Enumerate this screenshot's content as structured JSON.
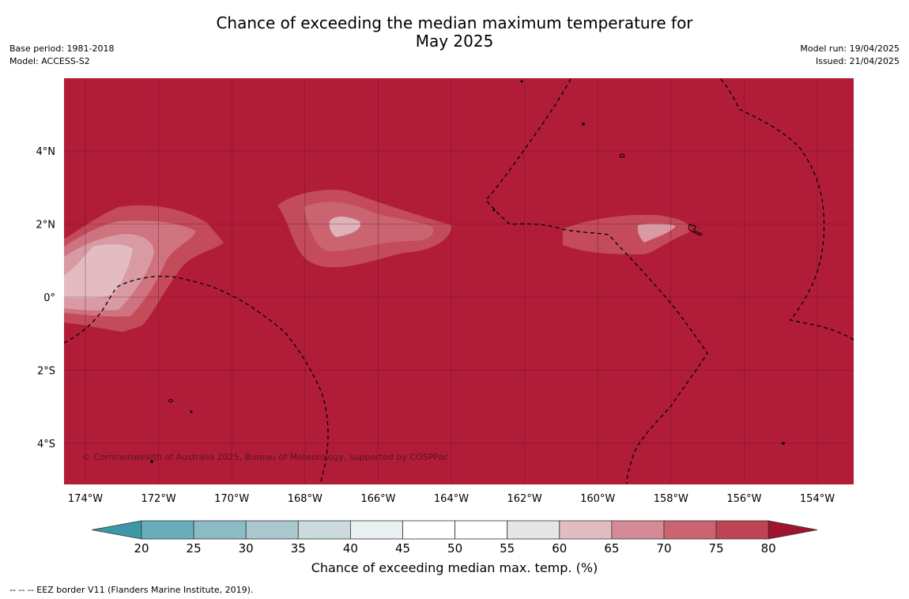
{
  "title_line1": "Chance of exceeding the median maximum temperature for",
  "title_line2": "May 2025",
  "meta_left": {
    "base_period": "Base period: 1981-2018",
    "model": "Model: ACCESS-S2"
  },
  "meta_right": {
    "model_run": "Model run: 19/04/2025",
    "issued": "Issued: 21/04/2025"
  },
  "map": {
    "lon_ticks": [
      "174°W",
      "172°W",
      "170°W",
      "168°W",
      "166°W",
      "164°W",
      "162°W",
      "160°W",
      "158°W",
      "156°W",
      "154°W"
    ],
    "lat_ticks": [
      "4°N",
      "2°N",
      "0°",
      "2°S",
      "4°S"
    ],
    "background_color": "#b11d38",
    "copyright": "© Commonwealth of Australia 2025, Bureau of Meteorology, supported by COSPPac"
  },
  "colorbar": {
    "ticks": [
      "20",
      "25",
      "30",
      "35",
      "40",
      "45",
      "50",
      "55",
      "60",
      "65",
      "70",
      "75",
      "80"
    ],
    "colors": [
      "#3c97a6",
      "#6aaebd",
      "#8bbcc6",
      "#a9c8cd",
      "#cbdadd",
      "#eaf0f1",
      "#ffffff",
      "#ffffff",
      "#e6e6e6",
      "#e2bcc3",
      "#d48b96",
      "#c96470",
      "#be4353",
      "#a0132e"
    ],
    "label": "Chance of exceeding median max. temp. (%)"
  },
  "footnote": "--  --  -- EEZ border V11 (Flanders Marine Institute, 2019)."
}
